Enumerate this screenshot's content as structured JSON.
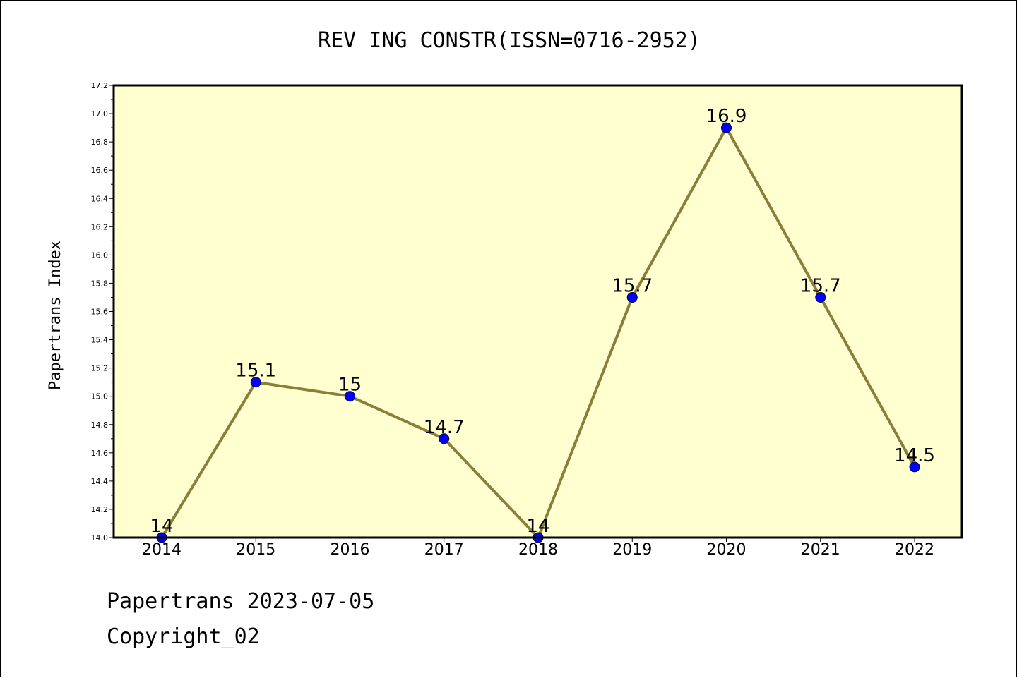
{
  "chart_data": {
    "type": "line",
    "title": "REV ING CONSTR(ISSN=0716-2952)",
    "xlabel": "",
    "ylabel": "Papertrans Index",
    "x": [
      "2014",
      "2015",
      "2016",
      "2017",
      "2018",
      "2019",
      "2020",
      "2021",
      "2022"
    ],
    "series": [
      {
        "values": [
          14,
          15.1,
          15,
          14.7,
          14,
          15.7,
          16.9,
          15.7,
          14.5
        ],
        "labels": [
          "14",
          "15.1",
          "15",
          "14.7",
          "14",
          "15.7",
          "16.9",
          "15.7",
          "14.5"
        ]
      }
    ],
    "ylim": [
      14.0,
      17.2
    ],
    "yticks": [
      "14.0",
      "14.2",
      "14.4",
      "14.6",
      "14.8",
      "15.0",
      "15.2",
      "15.4",
      "15.6",
      "15.8",
      "16.0",
      "16.2",
      "16.4",
      "16.6",
      "16.8",
      "17.0",
      "17.2"
    ],
    "grid": false,
    "legend": "none",
    "colors": {
      "plot_background": "#ffffd0",
      "line": "#8b7d3a",
      "marker": "#0000ff"
    }
  },
  "footer": {
    "date_line": "Papertrans 2023-07-05",
    "copyright": "Copyright_02"
  }
}
